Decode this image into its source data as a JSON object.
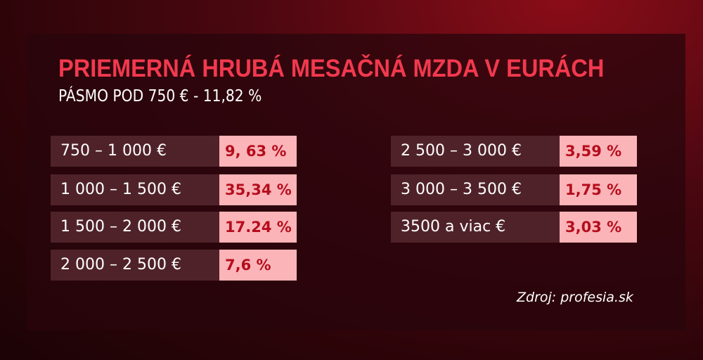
{
  "title": "PRIEMERNÁ HRUBÁ MESAČNÁ MZDA V EURÁCH",
  "subtitle": "PÁSMO POD 750 € - 11,82 %",
  "left_rows": [
    {
      "range": "750 – 1 000 €",
      "value": "9, 63 %"
    },
    {
      "range": "1 000 – 1 500 €",
      "value": "35,34 %"
    },
    {
      "range": "1 500 – 2 000 €",
      "value": "17.24 %"
    },
    {
      "range": "2 000 – 2 500 €",
      "value": "7,6 %"
    }
  ],
  "right_rows": [
    {
      "range": "2 500 – 3 000 €",
      "value": "3,59 %"
    },
    {
      "range": "3 000 – 3 500 €",
      "value": "1,75 %"
    },
    {
      "range": "3500 a viac €",
      "value": "3,03 %"
    }
  ],
  "source": "Zdroj: profesia.sk",
  "colors": {
    "title": "#f2394e",
    "value_bg": "#fbb4b8",
    "value_text": "#b50d1d",
    "label_bg": "#4f2229"
  }
}
